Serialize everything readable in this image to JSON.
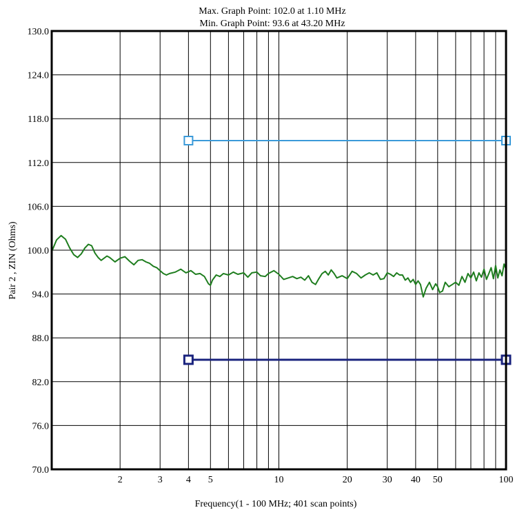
{
  "chart_data": {
    "type": "line",
    "annotations": [
      "Max. Graph Point: 102.0 at 1.10 MHz",
      "Min. Graph Point: 93.6 at 43.20 MHz"
    ],
    "xlabel": "Frequency(1 - 100 MHz; 401 scan points)",
    "ylabel": "Pair 2 , ZIN (Ohms)",
    "x_scale": "log",
    "xlim": [
      1,
      100
    ],
    "ylim": [
      70,
      130
    ],
    "grid": true,
    "x_ticks": [
      2,
      3,
      4,
      5,
      10,
      20,
      30,
      40,
      50,
      100
    ],
    "x_tick_labels": [
      "2",
      "3",
      "4",
      "5",
      "10",
      "20",
      "30",
      "40",
      "50",
      "100"
    ],
    "y_ticks": [
      70,
      76,
      82,
      88,
      94,
      100,
      106,
      112,
      118,
      124,
      130
    ],
    "y_tick_labels": [
      "70.0",
      "76.0",
      "82.0",
      "88.0",
      "94.0",
      "100.0",
      "106.0",
      "112.0",
      "118.0",
      "124.0",
      "130.0"
    ],
    "series": [
      {
        "color": "#1e7d1e",
        "x": [
          1.0,
          1.05,
          1.1,
          1.15,
          1.2,
          1.25,
          1.3,
          1.35,
          1.4,
          1.45,
          1.5,
          1.55,
          1.6,
          1.65,
          1.7,
          1.75,
          1.8,
          1.9,
          2.0,
          2.1,
          2.2,
          2.3,
          2.4,
          2.5,
          2.6,
          2.7,
          2.8,
          2.9,
          3.0,
          3.1,
          3.2,
          3.3,
          3.5,
          3.7,
          3.9,
          4.1,
          4.3,
          4.5,
          4.7,
          4.9,
          5.0,
          5.1,
          5.3,
          5.5,
          5.7,
          6.0,
          6.3,
          6.6,
          7.0,
          7.3,
          7.6,
          8.0,
          8.3,
          8.7,
          9.0,
          9.5,
          10.0,
          10.5,
          11.0,
          11.5,
          12.0,
          12.5,
          13.0,
          13.5,
          14.0,
          14.5,
          15.0,
          15.5,
          16.0,
          16.5,
          17.0,
          17.5,
          18.0,
          19.0,
          20.0,
          21.0,
          22.0,
          23.0,
          24.0,
          25.0,
          26.0,
          27.0,
          28.0,
          29.0,
          30.0,
          31.0,
          32.0,
          33.0,
          34.0,
          35.0,
          36.0,
          37.0,
          38.0,
          39.0,
          40.0,
          41.0,
          42.0,
          43.2,
          44.5,
          46.0,
          47.5,
          49.0,
          50.0,
          51.0,
          52.5,
          54.0,
          56.0,
          58.0,
          60.0,
          62.0,
          64.0,
          66.0,
          68.0,
          70.0,
          72.0,
          74.0,
          76.0,
          78.0,
          80.0,
          82.0,
          84.0,
          86.0,
          88.0,
          90.0,
          92.0,
          94.0,
          96.0,
          98.0,
          100.0
        ],
        "y": [
          99.8,
          101.4,
          102.0,
          101.5,
          100.3,
          99.4,
          99.0,
          99.5,
          100.3,
          100.8,
          100.6,
          99.6,
          99.0,
          98.6,
          98.9,
          99.2,
          99.0,
          98.4,
          98.9,
          99.1,
          98.5,
          98.0,
          98.6,
          98.7,
          98.4,
          98.2,
          97.8,
          97.6,
          97.2,
          96.8,
          96.6,
          96.8,
          97.0,
          97.4,
          96.9,
          97.2,
          96.7,
          96.8,
          96.4,
          95.4,
          95.2,
          95.9,
          96.6,
          96.4,
          96.8,
          96.6,
          97.0,
          96.7,
          96.9,
          96.3,
          96.9,
          97.0,
          96.5,
          96.4,
          96.8,
          97.2,
          96.7,
          96.0,
          96.2,
          96.4,
          96.1,
          96.3,
          95.9,
          96.5,
          95.6,
          95.3,
          96.1,
          96.8,
          97.1,
          96.6,
          97.3,
          96.8,
          96.2,
          96.5,
          96.1,
          97.1,
          96.8,
          96.2,
          96.6,
          96.9,
          96.6,
          96.9,
          96.0,
          96.1,
          96.9,
          96.7,
          96.4,
          96.9,
          96.6,
          96.6,
          95.9,
          96.2,
          95.6,
          96.0,
          95.3,
          95.8,
          95.3,
          93.6,
          94.8,
          95.6,
          94.6,
          95.4,
          95.0,
          94.2,
          94.4,
          95.6,
          95.0,
          95.3,
          95.6,
          95.2,
          96.4,
          95.6,
          96.8,
          96.2,
          97.0,
          95.8,
          96.9,
          96.3,
          97.4,
          96.0,
          96.8,
          97.6,
          96.1,
          97.9,
          96.2,
          97.3,
          96.5,
          98.1,
          97.4
        ]
      }
    ],
    "limit_lines": [
      {
        "value": 115,
        "x_start": 4,
        "x_end": 100,
        "color": "#3a9ad9"
      },
      {
        "value": 85,
        "x_start": 4,
        "x_end": 100,
        "color": "#1a237e"
      }
    ]
  }
}
